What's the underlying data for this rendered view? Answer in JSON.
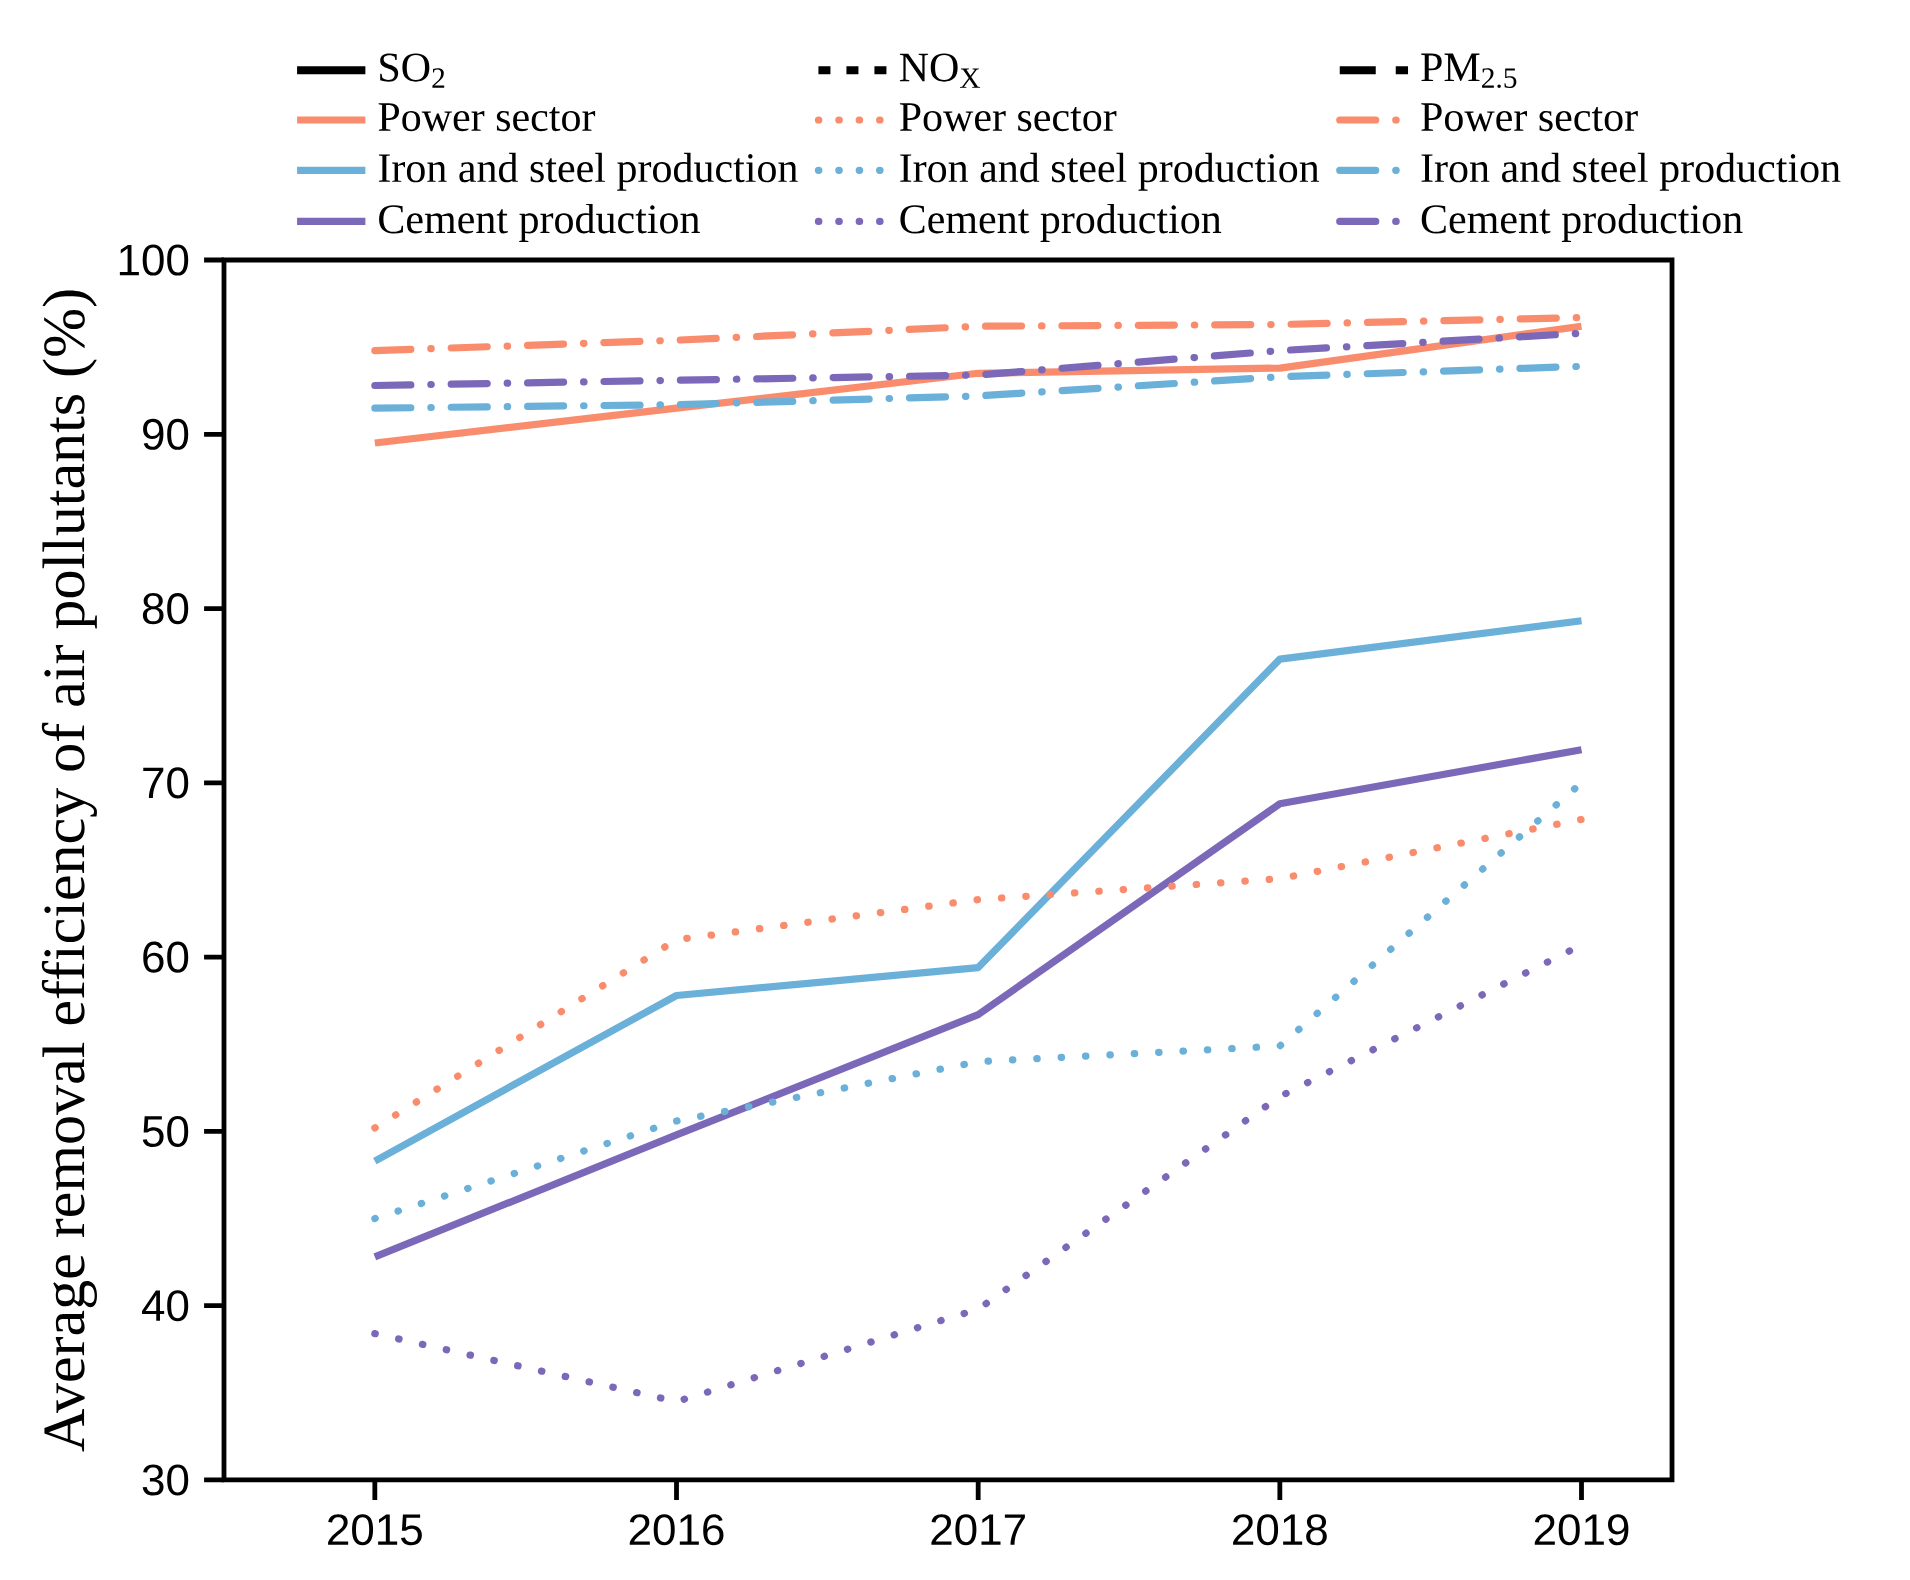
{
  "chart_data": {
    "type": "line",
    "ylabel": "Average removal efficiency of air pollutants (%)",
    "x": [
      2015,
      2016,
      2017,
      2018,
      2019
    ],
    "xlim": [
      2014.5,
      2019.3
    ],
    "xticks": [
      2015,
      2016,
      2017,
      2018,
      2019
    ],
    "ylim": [
      30,
      100
    ],
    "yticks": [
      30,
      40,
      50,
      60,
      70,
      80,
      90,
      100
    ],
    "legend": "top",
    "grid": false,
    "marker": "none",
    "annotations": [
      "SO$_{2}$",
      "NO$_{X}$",
      "PM$_{2.5}$"
    ],
    "series": [
      {
        "name": "Power sector",
        "color": "#fa8c6e",
        "line_style": "solid",
        "values": [
          89.5,
          91.5,
          93.5,
          93.8,
          96.2
        ]
      },
      {
        "name": "Iron and steel production",
        "color": "#6ab0d8",
        "line_style": "solid",
        "values": [
          48.3,
          57.8,
          59.4,
          77.1,
          79.3
        ]
      },
      {
        "name": "Cement production",
        "color": "#7b68b8",
        "line_style": "solid",
        "values": [
          42.8,
          49.8,
          56.7,
          68.8,
          71.9
        ]
      },
      {
        "name": "Power sector",
        "color": "#fa8c6e",
        "line_style": "dotted",
        "values": [
          50.2,
          61.0,
          63.3,
          64.5,
          67.9
        ]
      },
      {
        "name": "Iron and steel production",
        "color": "#6ab0d8",
        "line_style": "dotted",
        "values": [
          45.0,
          50.6,
          54.0,
          54.9,
          70.0
        ]
      },
      {
        "name": "Cement production",
        "color": "#7b68b8",
        "line_style": "dotted",
        "values": [
          38.4,
          34.5,
          39.8,
          52.0,
          60.7
        ]
      },
      {
        "name": "Power sector",
        "color": "#fa8c6e",
        "line_style": "dashed",
        "values": [
          94.8,
          95.4,
          96.2,
          96.3,
          96.7
        ]
      },
      {
        "name": "Iron and steel production",
        "color": "#6ab0d8",
        "line_style": "dashed",
        "values": [
          91.5,
          91.7,
          92.2,
          93.3,
          93.9
        ]
      },
      {
        "name": "Cement production",
        "color": "#7b68b8",
        "line_style": "dashed",
        "values": [
          92.8,
          93.1,
          93.4,
          94.8,
          95.8
        ]
      }
    ]
  }
}
